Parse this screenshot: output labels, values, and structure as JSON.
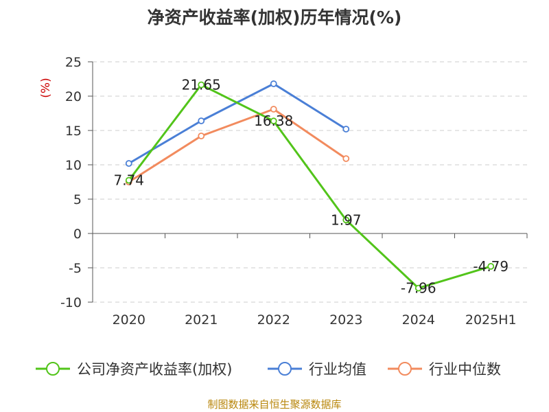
{
  "title": "净资产收益率(加权)历年情况(%)",
  "source": "制图数据来自恒生聚源数据库",
  "chart_data": {
    "type": "line",
    "title": "净资产收益率(加权)历年情况(%)",
    "ylabel": "(%)",
    "ylim": [
      -10,
      25
    ],
    "yticks": [
      25,
      20,
      15,
      10,
      5,
      0,
      -5,
      -10
    ],
    "grid": true,
    "legend_position": "bottom",
    "categories": [
      "2020",
      "2021",
      "2022",
      "2023",
      "2024",
      "2025H1"
    ],
    "series": [
      {
        "name": "公司净资产收益率(加权)",
        "color": "#52c41a",
        "values": [
          7.74,
          21.65,
          16.38,
          1.97,
          -7.96,
          -4.79
        ],
        "labels": [
          "7.74",
          "21.65",
          "16.38",
          "1.97",
          "-7.96",
          "-4.79"
        ]
      },
      {
        "name": "行业均值",
        "color": "#4a7fd6",
        "values": [
          10.2,
          16.4,
          21.8,
          15.2,
          null,
          null
        ]
      },
      {
        "name": "行业中位数",
        "color": "#f28b5e",
        "values": [
          7.5,
          14.2,
          18.1,
          10.9,
          null,
          null
        ]
      }
    ]
  }
}
